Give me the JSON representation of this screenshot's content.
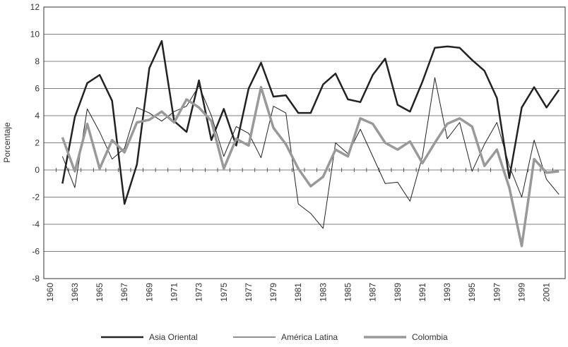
{
  "chart_data": {
    "type": "line",
    "y_label": "Porcentaje",
    "categories": [
      "1960",
      null,
      "1963",
      null,
      "1965",
      null,
      "1967",
      null,
      "1969",
      null,
      "1971",
      null,
      "1973",
      null,
      "1975",
      null,
      "1977",
      null,
      "1979",
      null,
      "1981",
      null,
      "1983",
      null,
      "1985",
      null,
      "1987",
      null,
      "1989",
      null,
      "1991",
      null,
      "1993",
      null,
      "1995",
      null,
      "1997",
      null,
      "1999",
      null,
      "2001",
      null
    ],
    "series": [
      {
        "name": "Asia Oriental",
        "color": "#222222",
        "width": 2.5,
        "values": [
          null,
          -1.0,
          3.9,
          6.4,
          7.0,
          5.1,
          -2.5,
          0.4,
          7.5,
          9.5,
          3.6,
          2.8,
          6.6,
          2.2,
          4.5,
          1.8,
          6.0,
          7.9,
          5.4,
          5.5,
          4.2,
          4.2,
          6.3,
          7.1,
          5.2,
          5.0,
          7.0,
          8.2,
          4.8,
          4.3,
          6.5,
          9.0,
          9.1,
          9.0,
          8.1,
          7.3,
          5.3,
          -0.6,
          4.6,
          6.1,
          4.6,
          5.9
        ]
      },
      {
        "name": "América Latina",
        "color": "#222222",
        "width": 1,
        "values": [
          null,
          1.0,
          -1.3,
          4.5,
          2.8,
          0.8,
          1.6,
          4.6,
          4.2,
          3.6,
          4.3,
          4.7,
          6.2,
          4.0,
          1.0,
          3.2,
          2.7,
          0.9,
          4.7,
          4.2,
          -2.5,
          -3.2,
          -4.3,
          2.0,
          1.2,
          3.0,
          1.0,
          -1.0,
          -0.9,
          -2.3,
          1.0,
          6.8,
          2.3,
          3.5,
          -0.1,
          1.9,
          3.5,
          0.3,
          -2.0,
          2.2,
          -0.7,
          -1.8
        ]
      },
      {
        "name": "Colombia",
        "color": "#999999",
        "width": 3.5,
        "values": [
          null,
          2.4,
          -0.1,
          3.4,
          0.1,
          2.2,
          1.3,
          3.5,
          3.7,
          4.3,
          3.5,
          5.2,
          4.6,
          3.6,
          0.1,
          2.3,
          1.8,
          6.1,
          3.1,
          1.9,
          0.1,
          -1.2,
          -0.5,
          1.5,
          1.0,
          3.8,
          3.4,
          2.0,
          1.5,
          2.1,
          0.5,
          2.0,
          3.4,
          3.8,
          3.2,
          0.3,
          1.5,
          -1.3,
          -5.6,
          0.8,
          -0.2,
          -0.1
        ]
      }
    ],
    "ylim": [
      -8,
      12
    ],
    "yticks": [
      -8,
      -6,
      -4,
      -2,
      0,
      2,
      4,
      6,
      8,
      10,
      12
    ],
    "grid": true,
    "legend": "bottom"
  }
}
